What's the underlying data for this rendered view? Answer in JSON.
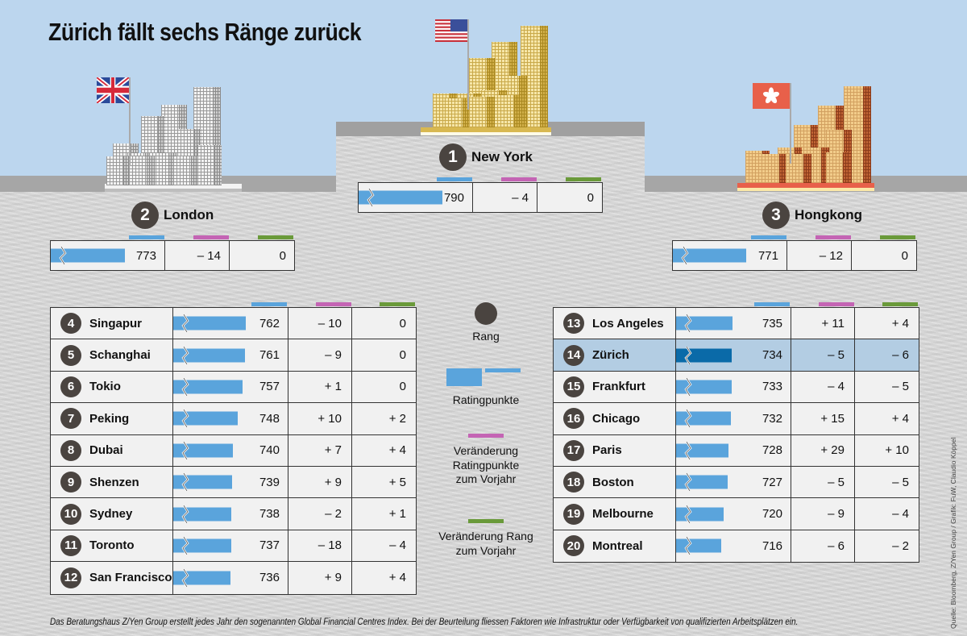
{
  "title": "Zürich fällt sechs Ränge zurück",
  "colors": {
    "sky": "#bcd6ee",
    "bar": "#5aa4dc",
    "bar_highlight": "#0a6aa8",
    "rating_header": "#5aa4dc",
    "change_points_header": "#c464b4",
    "change_rank_header": "#6a9a3a",
    "badge": "#4a4440",
    "highlight_row": "#b3cde3"
  },
  "podium": [
    {
      "rank": "1",
      "city": "New York",
      "flag": "usa-flag",
      "rating": 790,
      "rating_text": "790",
      "change_points": "– 4",
      "change_rank": "0"
    },
    {
      "rank": "2",
      "city": "London",
      "flag": "uk-flag",
      "rating": 773,
      "rating_text": "773",
      "change_points": "– 14",
      "change_rank": "0"
    },
    {
      "rank": "3",
      "city": "Hongkong",
      "flag": "hongkong-flag",
      "rating": 771,
      "rating_text": "771",
      "change_points": "– 12",
      "change_rank": "0"
    }
  ],
  "table_left": [
    {
      "rank": "4",
      "city": "Singapur",
      "rating": 762,
      "rating_text": "762",
      "change_points": "– 10",
      "change_rank": "0"
    },
    {
      "rank": "5",
      "city": "Schanghai",
      "rating": 761,
      "rating_text": "761",
      "change_points": "– 9",
      "change_rank": "0"
    },
    {
      "rank": "6",
      "city": "Tokio",
      "rating": 757,
      "rating_text": "757",
      "change_points": "+ 1",
      "change_rank": "0"
    },
    {
      "rank": "7",
      "city": "Peking",
      "rating": 748,
      "rating_text": "748",
      "change_points": "+ 10",
      "change_rank": "+ 2"
    },
    {
      "rank": "8",
      "city": "Dubai",
      "rating": 740,
      "rating_text": "740",
      "change_points": "+ 7",
      "change_rank": "+ 4"
    },
    {
      "rank": "9",
      "city": "Shenzen",
      "rating": 739,
      "rating_text": "739",
      "change_points": "+ 9",
      "change_rank": "+ 5"
    },
    {
      "rank": "10",
      "city": "Sydney",
      "rating": 738,
      "rating_text": "738",
      "change_points": "– 2",
      "change_rank": "+ 1"
    },
    {
      "rank": "11",
      "city": "Toronto",
      "rating": 737,
      "rating_text": "737",
      "change_points": "– 18",
      "change_rank": "– 4"
    },
    {
      "rank": "12",
      "city": "San Francisco",
      "rating": 736,
      "rating_text": "736",
      "change_points": "+ 9",
      "change_rank": "+ 4"
    }
  ],
  "table_right": [
    {
      "rank": "13",
      "city": "Los Angeles",
      "rating": 735,
      "rating_text": "735",
      "change_points": "+ 11",
      "change_rank": "+ 4"
    },
    {
      "rank": "14",
      "city": "Zürich",
      "rating": 734,
      "rating_text": "734",
      "change_points": "– 5",
      "change_rank": "– 6",
      "highlight": true
    },
    {
      "rank": "15",
      "city": "Frankfurt",
      "rating": 733,
      "rating_text": "733",
      "change_points": "– 4",
      "change_rank": "– 5"
    },
    {
      "rank": "16",
      "city": "Chicago",
      "rating": 732,
      "rating_text": "732",
      "change_points": "+ 15",
      "change_rank": "+ 4"
    },
    {
      "rank": "17",
      "city": "Paris",
      "rating": 728,
      "rating_text": "728",
      "change_points": "+ 29",
      "change_rank": "+ 10"
    },
    {
      "rank": "18",
      "city": "Boston",
      "rating": 727,
      "rating_text": "727",
      "change_points": "– 5",
      "change_rank": "– 5"
    },
    {
      "rank": "19",
      "city": "Melbourne",
      "rating": 720,
      "rating_text": "720",
      "change_points": "– 9",
      "change_rank": "– 4"
    },
    {
      "rank": "20",
      "city": "Montreal",
      "rating": 716,
      "rating_text": "716",
      "change_points": "– 6",
      "change_rank": "– 2"
    }
  ],
  "legend": {
    "rank": "Rang",
    "rating": "Ratingpunkte",
    "change_points_1": "Veränderung",
    "change_points_2": "Ratingpunkte",
    "change_points_3": "zum Vorjahr",
    "change_rank_1": "Veränderung Rang",
    "change_rank_2": "zum Vorjahr"
  },
  "footnote": "Das Beratungshaus Z/Yen Group erstellt jedes Jahr den sogenannten Global Financial Centres Index. Bei der Beurteilung fliessen Faktoren wie Infrastruktur oder Verfügbarkeit von qualifizierten Arbeitsplätzen ein.",
  "source": "Quelle: Bloomberg, Z/Yen Group / Grafik: FuW, Claudio Köppel",
  "chart_data": {
    "type": "table",
    "title": "Zürich fällt sechs Ränge zurück",
    "columns": [
      "Rang",
      "Stadt",
      "Ratingpunkte",
      "Veränderung Ratingpunkte zum Vorjahr",
      "Veränderung Rang zum Vorjahr"
    ],
    "axis_break": true,
    "rows": [
      [
        1,
        "New York",
        790,
        -4,
        0
      ],
      [
        2,
        "London",
        773,
        -14,
        0
      ],
      [
        3,
        "Hongkong",
        771,
        -12,
        0
      ],
      [
        4,
        "Singapur",
        762,
        -10,
        0
      ],
      [
        5,
        "Schanghai",
        761,
        -9,
        0
      ],
      [
        6,
        "Tokio",
        757,
        1,
        0
      ],
      [
        7,
        "Peking",
        748,
        10,
        2
      ],
      [
        8,
        "Dubai",
        740,
        7,
        4
      ],
      [
        9,
        "Shenzen",
        739,
        9,
        5
      ],
      [
        10,
        "Sydney",
        738,
        -2,
        1
      ],
      [
        11,
        "Toronto",
        737,
        -18,
        -4
      ],
      [
        12,
        "San Francisco",
        736,
        9,
        4
      ],
      [
        13,
        "Los Angeles",
        735,
        11,
        4
      ],
      [
        14,
        "Zürich",
        734,
        -5,
        -6
      ],
      [
        15,
        "Frankfurt",
        733,
        -4,
        -5
      ],
      [
        16,
        "Chicago",
        732,
        15,
        4
      ],
      [
        17,
        "Paris",
        728,
        29,
        10
      ],
      [
        18,
        "Boston",
        727,
        -5,
        -5
      ],
      [
        19,
        "Melbourne",
        720,
        -9,
        -4
      ],
      [
        20,
        "Montreal",
        716,
        -6,
        -2
      ]
    ],
    "highlight": "Zürich",
    "legend": [
      "Rang",
      "Ratingpunkte",
      "Veränderung Ratingpunkte zum Vorjahr",
      "Veränderung Rang zum Vorjahr"
    ]
  }
}
